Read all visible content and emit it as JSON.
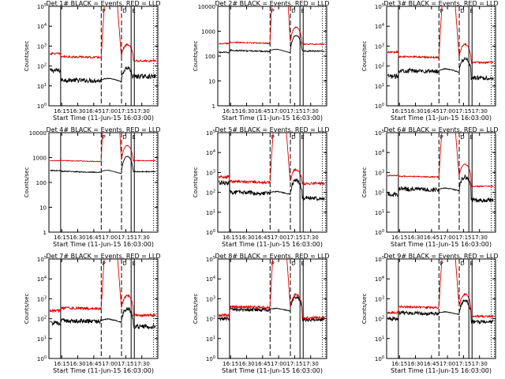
{
  "chart_data": {
    "type": "line",
    "layout": "3x3 grid",
    "shared": {
      "xlabel": "Start Time (11-Jun-15 16:03:00)",
      "ylabel": "Counts/sec",
      "x_range_minutes": [
        16.05,
        17.75
      ],
      "x_ticks": [
        "16:15",
        "16:30",
        "16:45",
        "17:00",
        "17:15",
        "17:30"
      ],
      "series": [
        {
          "name": "BLACK = Events",
          "color": "#000000"
        },
        {
          "name": "RED = LLD",
          "color": "#dd0000"
        }
      ],
      "marker_lines": {
        "solid": [
          "16:14",
          "17:20",
          "17:23"
        ],
        "dashed": [
          "16:52",
          "17:11"
        ],
        "dotted": [
          "17:41",
          "17:44"
        ]
      },
      "marker_labels": [
        "P",
        "D",
        "E"
      ]
    },
    "panels": [
      {
        "title": "Det 1# BLACK = Events, RED = LLD",
        "yscale": "log",
        "ylim": [
          1,
          100000
        ],
        "yticks": [
          {
            "v": 1,
            "b": "10",
            "e": "0"
          },
          {
            "v": 10,
            "b": "10",
            "e": "1"
          },
          {
            "v": 100,
            "b": "10",
            "e": "2"
          },
          {
            "v": 1000,
            "b": "10",
            "e": "3"
          },
          {
            "v": 10000,
            "b": "10",
            "e": "4"
          },
          {
            "v": 100000,
            "b": "10",
            "e": "5"
          }
        ],
        "black": {
          "base": 60,
          "pre": 20,
          "flare": 1.2,
          "post": 30,
          "noise": 0.25
        },
        "red": {
          "base": 420,
          "pre": 300,
          "flare": 8000,
          "post": 180,
          "noise": 0.12
        }
      },
      {
        "title": "Det 2# BLACK = Events, RED = LLD",
        "yscale": "log",
        "ylim": [
          1,
          10000
        ],
        "yticks": [
          {
            "v": 1,
            "b": "1",
            "e": ""
          },
          {
            "v": 10,
            "b": "10",
            "e": ""
          },
          {
            "v": 100,
            "b": "100",
            "e": ""
          },
          {
            "v": 1000,
            "b": "1000",
            "e": ""
          },
          {
            "v": 10000,
            "b": "10000",
            "e": ""
          }
        ],
        "black": {
          "base": 140,
          "pre": 170,
          "flare": 1.1,
          "post": 160,
          "noise": 0.06
        },
        "red": {
          "base": 320,
          "pre": 360,
          "flare": 30000,
          "post": 300,
          "noise": 0.05
        }
      },
      {
        "title": "Det 3# BLACK = Events, RED = LLD",
        "yscale": "log",
        "ylim": [
          1,
          100000
        ],
        "yticks": [
          {
            "v": 1,
            "b": "10",
            "e": "0"
          },
          {
            "v": 10,
            "b": "10",
            "e": "1"
          },
          {
            "v": 100,
            "b": "10",
            "e": "2"
          },
          {
            "v": 1000,
            "b": "10",
            "e": "3"
          },
          {
            "v": 10000,
            "b": "10",
            "e": "4"
          },
          {
            "v": 100000,
            "b": "10",
            "e": "5"
          }
        ],
        "black": {
          "base": 30,
          "pre": 60,
          "flare": 1.2,
          "post": 25,
          "noise": 0.25
        },
        "red": {
          "base": 500,
          "pre": 300,
          "flare": 12000,
          "post": 150,
          "noise": 0.1
        }
      },
      {
        "title": "Det 4# BLACK = Events, RED = LLD",
        "yscale": "log",
        "ylim": [
          1,
          10000
        ],
        "yticks": [
          {
            "v": 1,
            "b": "1",
            "e": ""
          },
          {
            "v": 10,
            "b": "10",
            "e": ""
          },
          {
            "v": 100,
            "b": "100",
            "e": ""
          },
          {
            "v": 1000,
            "b": "1000",
            "e": ""
          },
          {
            "v": 10000,
            "b": "10000",
            "e": ""
          }
        ],
        "black": {
          "base": 300,
          "pre": 280,
          "flare": 1.1,
          "post": 270,
          "noise": 0.04
        },
        "red": {
          "base": 750,
          "pre": 760,
          "flare": 30000,
          "post": 750,
          "noise": 0.03
        }
      },
      {
        "title": "Det 5# BLACK = Events, RED = LLD",
        "yscale": "log",
        "ylim": [
          1,
          100000
        ],
        "yticks": [
          {
            "v": 1,
            "b": "10",
            "e": "0"
          },
          {
            "v": 10,
            "b": "10",
            "e": "1"
          },
          {
            "v": 100,
            "b": "10",
            "e": "2"
          },
          {
            "v": 1000,
            "b": "10",
            "e": "3"
          },
          {
            "v": 10000,
            "b": "10",
            "e": "4"
          },
          {
            "v": 100000,
            "b": "10",
            "e": "5"
          }
        ],
        "black": {
          "base": 300,
          "pre": 100,
          "flare": 1.1,
          "post": 50,
          "noise": 0.25
        },
        "red": {
          "base": 600,
          "pre": 350,
          "flare": 8000,
          "post": 280,
          "noise": 0.15
        }
      },
      {
        "title": "Det 6# BLACK = Events, RED = LLD",
        "yscale": "log",
        "ylim": [
          1,
          100000
        ],
        "yticks": [
          {
            "v": 1,
            "b": "10",
            "e": "0"
          },
          {
            "v": 10,
            "b": "10",
            "e": "1"
          },
          {
            "v": 100,
            "b": "10",
            "e": "2"
          },
          {
            "v": 1000,
            "b": "10",
            "e": "3"
          },
          {
            "v": 10000,
            "b": "10",
            "e": "4"
          },
          {
            "v": 100000,
            "b": "10",
            "e": "5"
          }
        ],
        "black": {
          "base": 80,
          "pre": 150,
          "flare": 1.1,
          "post": 40,
          "noise": 0.25
        },
        "red": {
          "base": 700,
          "pre": 650,
          "flare": 6000,
          "post": 200,
          "noise": 0.06
        }
      },
      {
        "title": "Det 7# BLACK = Events, RED = LLD",
        "yscale": "log",
        "ylim": [
          1,
          100000
        ],
        "yticks": [
          {
            "v": 1,
            "b": "10",
            "e": "0"
          },
          {
            "v": 10,
            "b": "10",
            "e": "1"
          },
          {
            "v": 100,
            "b": "10",
            "e": "2"
          },
          {
            "v": 1000,
            "b": "10",
            "e": "3"
          },
          {
            "v": 10000,
            "b": "10",
            "e": "4"
          },
          {
            "v": 100000,
            "b": "10",
            "e": "5"
          }
        ],
        "black": {
          "base": 60,
          "pre": 80,
          "flare": 1.2,
          "post": 40,
          "noise": 0.25
        },
        "red": {
          "base": 250,
          "pre": 350,
          "flare": 10000,
          "post": 150,
          "noise": 0.15
        }
      },
      {
        "title": "Det 8# BLACK = Events, RED = LLD",
        "yscale": "log",
        "ylim": [
          1,
          100000
        ],
        "yticks": [
          {
            "v": 1,
            "b": "10",
            "e": "0"
          },
          {
            "v": 10,
            "b": "10",
            "e": "1"
          },
          {
            "v": 100,
            "b": "10",
            "e": "2"
          },
          {
            "v": 1000,
            "b": "10",
            "e": "3"
          },
          {
            "v": 10000,
            "b": "10",
            "e": "4"
          },
          {
            "v": 100000,
            "b": "10",
            "e": "5"
          }
        ],
        "black": {
          "base": 100,
          "pre": 300,
          "flare": 1.1,
          "post": 90,
          "noise": 0.2
        },
        "red": {
          "base": 150,
          "pre": 400,
          "flare": 25000,
          "post": 110,
          "noise": 0.15
        }
      },
      {
        "title": "Det 9# BLACK = Events, RED = LLD",
        "yscale": "log",
        "ylim": [
          1,
          100000
        ],
        "yticks": [
          {
            "v": 1,
            "b": "10",
            "e": "0"
          },
          {
            "v": 10,
            "b": "10",
            "e": "1"
          },
          {
            "v": 100,
            "b": "10",
            "e": "2"
          },
          {
            "v": 1000,
            "b": "10",
            "e": "3"
          },
          {
            "v": 10000,
            "b": "10",
            "e": "4"
          },
          {
            "v": 100000,
            "b": "10",
            "e": "5"
          }
        ],
        "black": {
          "base": 100,
          "pre": 200,
          "flare": 1.1,
          "post": 70,
          "noise": 0.2
        },
        "red": {
          "base": 200,
          "pre": 400,
          "flare": 10000,
          "post": 130,
          "noise": 0.12
        }
      }
    ]
  }
}
